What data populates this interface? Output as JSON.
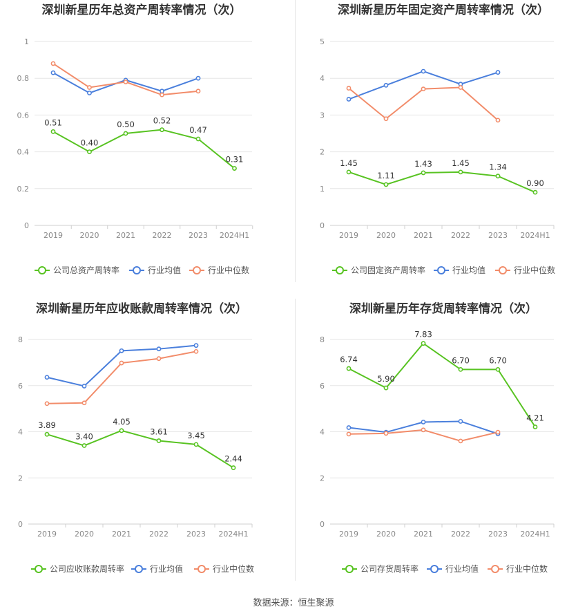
{
  "source": "数据来源：恒生聚源",
  "colors": {
    "company": "#58c322",
    "industry_avg": "#4a7fdc",
    "industry_median": "#f28c6a",
    "grid": "#e6e6e6",
    "axis_text": "#888888"
  },
  "chart_data": [
    {
      "type": "line",
      "title": "深圳新星历年总资产周转率情况（次）",
      "categories": [
        "2019",
        "2020",
        "2021",
        "2022",
        "2023",
        "2024H1"
      ],
      "ylim": [
        0,
        1
      ],
      "yticks": [
        "0",
        "0.2",
        "0.4",
        "0.6",
        "0.8",
        "1"
      ],
      "ytick_values": [
        0,
        0.2,
        0.4,
        0.6,
        0.8,
        1
      ],
      "series": [
        {
          "name": "公司总资产周转率",
          "color": "#58c322",
          "values": [
            0.51,
            0.4,
            0.5,
            0.52,
            0.47,
            0.31
          ],
          "labels": [
            "0.51",
            "0.40",
            "0.50",
            "0.52",
            "0.47",
            "0.31"
          ]
        },
        {
          "name": "行业均值",
          "color": "#4a7fdc",
          "values": [
            0.83,
            0.72,
            0.79,
            0.73,
            0.8,
            null
          ]
        },
        {
          "name": "行业中位数",
          "color": "#f28c6a",
          "values": [
            0.88,
            0.75,
            0.78,
            0.71,
            0.73,
            null
          ]
        }
      ]
    },
    {
      "type": "line",
      "title": "深圳新星历年固定资产周转率情况（次）",
      "categories": [
        "2019",
        "2020",
        "2021",
        "2022",
        "2023",
        "2024H1"
      ],
      "ylim": [
        0,
        5
      ],
      "yticks": [
        "0",
        "1",
        "2",
        "3",
        "4",
        "5"
      ],
      "ytick_values": [
        0,
        1,
        2,
        3,
        4,
        5
      ],
      "series": [
        {
          "name": "公司固定资产周转率",
          "color": "#58c322",
          "values": [
            1.45,
            1.11,
            1.43,
            1.45,
            1.34,
            0.9
          ],
          "labels": [
            "1.45",
            "1.11",
            "1.43",
            "1.45",
            "1.34",
            "0.90"
          ]
        },
        {
          "name": "行业均值",
          "color": "#4a7fdc",
          "values": [
            3.43,
            3.81,
            4.19,
            3.84,
            4.16,
            null
          ]
        },
        {
          "name": "行业中位数",
          "color": "#f28c6a",
          "values": [
            3.73,
            2.9,
            3.71,
            3.75,
            2.86,
            null
          ]
        }
      ]
    },
    {
      "type": "line",
      "title": "深圳新星历年应收账款周转率情况（次）",
      "categories": [
        "2019",
        "2020",
        "2021",
        "2022",
        "2023",
        "2024H1"
      ],
      "ylim": [
        0,
        8
      ],
      "yticks": [
        "0",
        "2",
        "4",
        "6",
        "8"
      ],
      "ytick_values": [
        0,
        2,
        4,
        6,
        8
      ],
      "series": [
        {
          "name": "公司应收账款周转率",
          "color": "#58c322",
          "values": [
            3.89,
            3.4,
            4.05,
            3.61,
            3.45,
            2.44
          ],
          "labels": [
            "3.89",
            "3.40",
            "4.05",
            "3.61",
            "3.45",
            "2.44"
          ]
        },
        {
          "name": "行业均值",
          "color": "#4a7fdc",
          "values": [
            6.36,
            5.98,
            7.51,
            7.59,
            7.74,
            null
          ]
        },
        {
          "name": "行业中位数",
          "color": "#f28c6a",
          "values": [
            5.22,
            5.25,
            6.98,
            7.17,
            7.48,
            null
          ]
        }
      ]
    },
    {
      "type": "line",
      "title": "深圳新星历年存货周转率情况（次）",
      "categories": [
        "2019",
        "2020",
        "2021",
        "2022",
        "2023",
        "2024H1"
      ],
      "ylim": [
        0,
        8
      ],
      "yticks": [
        "0",
        "2",
        "4",
        "6",
        "8"
      ],
      "ytick_values": [
        0,
        2,
        4,
        6,
        8
      ],
      "series": [
        {
          "name": "公司存货周转率",
          "color": "#58c322",
          "values": [
            6.74,
            5.9,
            7.83,
            6.7,
            6.7,
            4.21
          ],
          "labels": [
            "6.74",
            "5.90",
            "7.83",
            "6.70",
            "6.70",
            "4.21"
          ]
        },
        {
          "name": "行业均值",
          "color": "#4a7fdc",
          "values": [
            4.18,
            3.98,
            4.42,
            4.45,
            3.91,
            null
          ]
        },
        {
          "name": "行业中位数",
          "color": "#f28c6a",
          "values": [
            3.9,
            3.93,
            4.08,
            3.6,
            3.98,
            null
          ]
        }
      ]
    }
  ]
}
